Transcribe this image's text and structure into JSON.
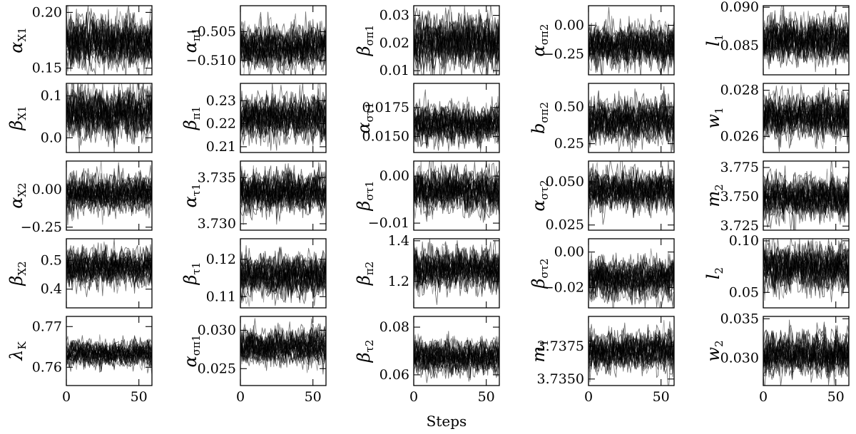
{
  "figure": {
    "xlabel": "Steps",
    "colors": {
      "trace_dark": "#000000",
      "trace_light": "#9a9a9a",
      "axis": "#000000"
    }
  },
  "chart_data": [
    {
      "type": "line",
      "ylabel": "αX1",
      "ylim": [
        0.144,
        0.206
      ],
      "yticks": [
        0.15,
        0.2
      ],
      "yticklabels": [
        "0.15",
        "0.20"
      ],
      "xlim": [
        0,
        59
      ],
      "xticks": [
        0,
        50
      ],
      "xticklabels": [
        "",
        ""
      ],
      "center": 0.173,
      "spread": 0.011,
      "walkers": 30
    },
    {
      "type": "line",
      "ylabel": "απ1",
      "ylim": [
        -0.5125,
        -0.5005
      ],
      "yticks": [
        -0.51,
        -0.505
      ],
      "yticklabels": [
        "−0.510",
        "−0.505"
      ],
      "xlim": [
        0,
        59
      ],
      "xticks": [
        0,
        50
      ],
      "xticklabels": [
        "",
        ""
      ],
      "center": -0.5078,
      "spread": 0.0018,
      "walkers": 30
    },
    {
      "type": "line",
      "ylabel": "βσπ1",
      "ylim": [
        0.0085,
        0.0335
      ],
      "yticks": [
        0.01,
        0.02,
        0.03
      ],
      "yticklabels": [
        "0.01",
        "0.02",
        "0.03"
      ],
      "xlim": [
        0,
        59
      ],
      "xticks": [
        0,
        50
      ],
      "xticklabels": [
        "",
        ""
      ],
      "center": 0.0205,
      "spread": 0.0045,
      "walkers": 30
    },
    {
      "type": "line",
      "ylabel": "ασπ2",
      "ylim": [
        -0.43,
        0.17
      ],
      "yticks": [
        -0.25,
        0.0
      ],
      "yticklabels": [
        "−0.25",
        "0.00"
      ],
      "xlim": [
        0,
        59
      ],
      "xticks": [
        0,
        50
      ],
      "xticklabels": [
        "",
        ""
      ],
      "center": -0.18,
      "spread": 0.09,
      "walkers": 30
    },
    {
      "type": "line",
      "ylabel": "l1",
      "ylim": [
        0.0812,
        0.0902
      ],
      "yticks": [
        0.085,
        0.09
      ],
      "yticklabels": [
        "0.085",
        "0.090"
      ],
      "xlim": [
        0,
        59
      ],
      "xticks": [
        0,
        50
      ],
      "xticklabels": [
        "",
        ""
      ],
      "center": 0.0857,
      "spread": 0.0014,
      "walkers": 30
    },
    {
      "type": "line",
      "ylabel": "βX1",
      "ylim": [
        -0.035,
        0.13
      ],
      "yticks": [
        0.0,
        0.1
      ],
      "yticklabels": [
        "0.0",
        "0.1"
      ],
      "xlim": [
        0,
        59
      ],
      "xticks": [
        0,
        50
      ],
      "xticklabels": [
        "",
        ""
      ],
      "center": 0.058,
      "spread": 0.028,
      "walkers": 30
    },
    {
      "type": "line",
      "ylabel": "βπ1",
      "ylim": [
        0.2075,
        0.2375
      ],
      "yticks": [
        0.21,
        0.22,
        0.23
      ],
      "yticklabels": [
        "0.21",
        "0.22",
        "0.23"
      ],
      "xlim": [
        0,
        59
      ],
      "xticks": [
        0,
        50
      ],
      "xticklabels": [
        "",
        ""
      ],
      "center": 0.2225,
      "spread": 0.0045,
      "walkers": 30
    },
    {
      "type": "line",
      "ylabel": "αστ1",
      "ylim": [
        0.0136,
        0.0196
      ],
      "yticks": [
        0.015,
        0.0175
      ],
      "yticklabels": [
        "0.0150",
        "0.0175"
      ],
      "xlim": [
        0,
        59
      ],
      "xticks": [
        0,
        50
      ],
      "xticklabels": [
        "",
        ""
      ],
      "center": 0.0161,
      "spread": 0.0008,
      "walkers": 30
    },
    {
      "type": "line",
      "ylabel": "bσπ2",
      "ylim": [
        0.19,
        0.66
      ],
      "yticks": [
        0.25,
        0.5
      ],
      "yticklabels": [
        "0.25",
        "0.50"
      ],
      "xlim": [
        0,
        59
      ],
      "xticks": [
        0,
        50
      ],
      "xticklabels": [
        "",
        ""
      ],
      "center": 0.4,
      "spread": 0.07,
      "walkers": 30
    },
    {
      "type": "line",
      "ylabel": "w1",
      "ylim": [
        0.0253,
        0.0283
      ],
      "yticks": [
        0.026,
        0.028
      ],
      "yticklabels": [
        "0.026",
        "0.028"
      ],
      "xlim": [
        0,
        59
      ],
      "xticks": [
        0,
        50
      ],
      "xticklabels": [
        "",
        ""
      ],
      "center": 0.0269,
      "spread": 0.00045,
      "walkers": 30
    },
    {
      "type": "line",
      "ylabel": "αX2",
      "ylim": [
        -0.27,
        0.19
      ],
      "yticks": [
        -0.25,
        0.0
      ],
      "yticklabels": [
        "−0.25",
        "0.00"
      ],
      "xlim": [
        0,
        59
      ],
      "xticks": [
        0,
        50
      ],
      "xticklabels": [
        "",
        ""
      ],
      "center": -0.03,
      "spread": 0.06,
      "walkers": 30
    },
    {
      "type": "line",
      "ylabel": "ατ1",
      "ylim": [
        3.7293,
        3.7368
      ],
      "yticks": [
        3.73,
        3.735
      ],
      "yticklabels": [
        "3.730",
        "3.735"
      ],
      "xlim": [
        0,
        59
      ],
      "xticks": [
        0,
        50
      ],
      "xticklabels": [
        "",
        ""
      ],
      "center": 3.7335,
      "spread": 0.0011,
      "walkers": 30
    },
    {
      "type": "line",
      "ylabel": "βστ1",
      "ylim": [
        -0.0115,
        0.0032
      ],
      "yticks": [
        -0.01,
        0.0
      ],
      "yticklabels": [
        "−0.01",
        "0.00"
      ],
      "xlim": [
        0,
        59
      ],
      "xticks": [
        0,
        50
      ],
      "xticklabels": [
        "",
        ""
      ],
      "center": -0.003,
      "spread": 0.0022,
      "walkers": 30
    },
    {
      "type": "line",
      "ylabel": "αστ2",
      "ylim": [
        0.022,
        0.062
      ],
      "yticks": [
        0.025,
        0.05
      ],
      "yticklabels": [
        "0.025",
        "0.050"
      ],
      "xlim": [
        0,
        59
      ],
      "xticks": [
        0,
        50
      ],
      "xticklabels": [
        "",
        ""
      ],
      "center": 0.045,
      "spread": 0.0055,
      "walkers": 30
    },
    {
      "type": "line",
      "ylabel": "m2",
      "ylim": [
        3.7215,
        3.7805
      ],
      "yticks": [
        3.725,
        3.75,
        3.775
      ],
      "yticklabels": [
        "3.725",
        "3.750",
        "3.775"
      ],
      "xlim": [
        0,
        59
      ],
      "xticks": [
        0,
        50
      ],
      "xticklabels": [
        "",
        ""
      ],
      "center": 3.749,
      "spread": 0.009,
      "walkers": 30
    },
    {
      "type": "line",
      "ylabel": "βX2",
      "ylim": [
        0.335,
        0.575
      ],
      "yticks": [
        0.4,
        0.5
      ],
      "yticklabels": [
        "0.4",
        "0.5"
      ],
      "xlim": [
        0,
        59
      ],
      "xticks": [
        0,
        50
      ],
      "xticklabels": [
        "",
        ""
      ],
      "center": 0.475,
      "spread": 0.03,
      "walkers": 30
    },
    {
      "type": "line",
      "ylabel": "βτ1",
      "ylim": [
        0.107,
        0.1255
      ],
      "yticks": [
        0.11,
        0.12
      ],
      "yticklabels": [
        "0.11",
        "0.12"
      ],
      "xlim": [
        0,
        59
      ],
      "xticks": [
        0,
        50
      ],
      "xticklabels": [
        "",
        ""
      ],
      "center": 0.1155,
      "spread": 0.0027,
      "walkers": 30
    },
    {
      "type": "line",
      "ylabel": "βπ2",
      "ylim": [
        1.07,
        1.41
      ],
      "yticks": [
        1.2,
        1.4
      ],
      "yticklabels": [
        "1.2",
        "1.4"
      ],
      "xlim": [
        0,
        59
      ],
      "xticks": [
        0,
        50
      ],
      "xticklabels": [
        "",
        ""
      ],
      "center": 1.26,
      "spread": 0.05,
      "walkers": 30
    },
    {
      "type": "line",
      "ylabel": "βστ2",
      "ylim": [
        -0.0315,
        0.0075
      ],
      "yticks": [
        -0.02,
        0.0
      ],
      "yticklabels": [
        "−0.02",
        "0.00"
      ],
      "xlim": [
        0,
        59
      ],
      "xticks": [
        0,
        50
      ],
      "xticklabels": [
        "",
        ""
      ],
      "center": -0.015,
      "spread": 0.0055,
      "walkers": 30
    },
    {
      "type": "line",
      "ylabel": "l2",
      "ylim": [
        0.035,
        0.102
      ],
      "yticks": [
        0.05,
        0.1
      ],
      "yticklabels": [
        "0.05",
        "0.10"
      ],
      "xlim": [
        0,
        59
      ],
      "xticks": [
        0,
        50
      ],
      "xticklabels": [
        "",
        ""
      ],
      "center": 0.075,
      "spread": 0.011,
      "walkers": 30
    },
    {
      "type": "line",
      "ylabel": "λK",
      "ylim": [
        0.7555,
        0.7725
      ],
      "yticks": [
        0.76,
        0.77
      ],
      "yticklabels": [
        "0.76",
        "0.77"
      ],
      "xlim": [
        0,
        59
      ],
      "xticks": [
        0,
        50
      ],
      "xticklabels": [
        "0",
        "50"
      ],
      "center": 0.7633,
      "spread": 0.0015,
      "walkers": 30
    },
    {
      "type": "line",
      "ylabel": "ασπ1",
      "ylim": [
        0.0228,
        0.0318
      ],
      "yticks": [
        0.025,
        0.03
      ],
      "yticklabels": [
        "0.025",
        "0.030"
      ],
      "xlim": [
        0,
        59
      ],
      "xticks": [
        0,
        50
      ],
      "xticklabels": [
        "",
        ""
      ],
      "center": 0.0278,
      "spread": 0.0011,
      "walkers": 30
    },
    {
      "type": "line",
      "ylabel": "βτ2",
      "ylim": [
        0.0555,
        0.0845
      ],
      "yticks": [
        0.06,
        0.08
      ],
      "yticklabels": [
        "0.06",
        "0.08"
      ],
      "xlim": [
        0,
        59
      ],
      "xticks": [
        0,
        50
      ],
      "xticklabels": [
        "0",
        "50"
      ],
      "center": 0.0675,
      "spread": 0.0035,
      "walkers": 30
    },
    {
      "type": "line",
      "ylabel": "m1",
      "ylim": [
        3.7345,
        3.7398
      ],
      "yticks": [
        3.735,
        3.7375
      ],
      "yticklabels": [
        "3.7350",
        "3.7375"
      ],
      "xlim": [
        0,
        59
      ],
      "xticks": [
        0,
        50
      ],
      "xticklabels": [
        "",
        ""
      ],
      "center": 3.7371,
      "spread": 0.0007,
      "walkers": 30
    },
    {
      "type": "line",
      "ylabel": "w2",
      "ylim": [
        0.0265,
        0.0353
      ],
      "yticks": [
        0.03,
        0.035
      ],
      "yticklabels": [
        "0.030",
        "0.035"
      ],
      "xlim": [
        0,
        59
      ],
      "xticks": [
        0,
        50
      ],
      "xticklabels": [
        "",
        ""
      ],
      "center": 0.0305,
      "spread": 0.0013,
      "walkers": 30
    }
  ]
}
